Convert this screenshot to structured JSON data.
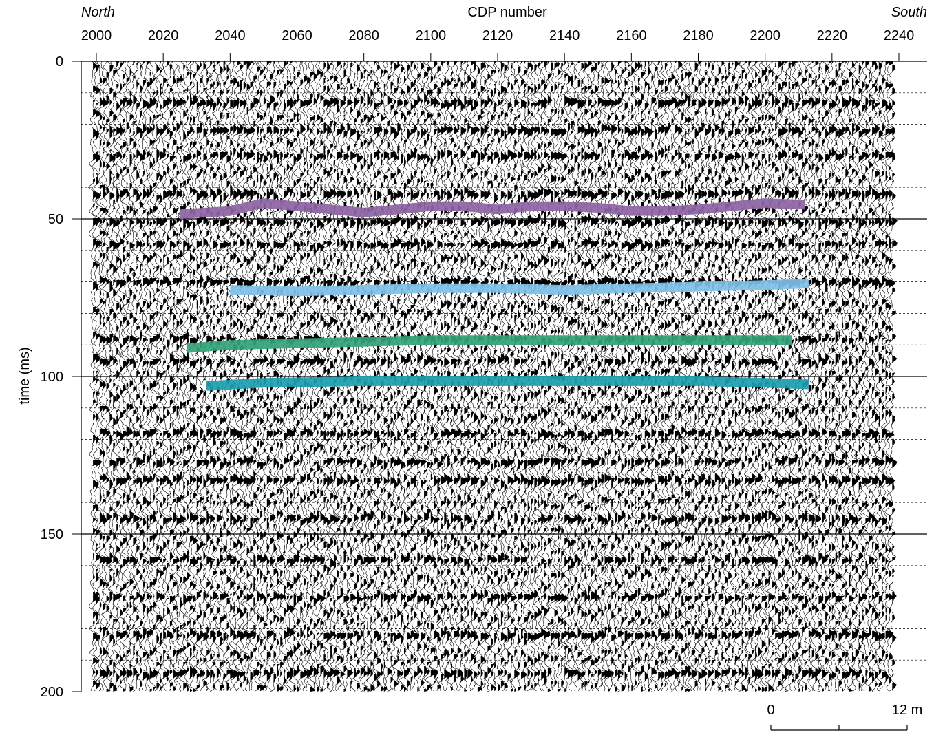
{
  "chart_data": {
    "type": "seismic-section",
    "xlabel": "CDP number",
    "ylabel": "time (ms)",
    "x_direction_labels": {
      "left": "North",
      "right": "South"
    },
    "x_ticks": [
      2000,
      2020,
      2040,
      2060,
      2080,
      2100,
      2120,
      2140,
      2160,
      2180,
      2200,
      2220,
      2240
    ],
    "y_ticks": [
      0,
      50,
      100,
      150,
      200
    ],
    "xlim": [
      1996,
      2247
    ],
    "ylim": [
      0,
      200
    ],
    "grid": "horizontal dashed every 10 ms, solid every 50 ms",
    "y_inverted": true,
    "scale_bar": {
      "start_label": "0",
      "end_label": "12 m",
      "length_m": 12
    },
    "horizons": [
      {
        "color": "#8e63a4",
        "points": [
          [
            2025,
            48.5
          ],
          [
            2040,
            47.5
          ],
          [
            2050,
            45
          ],
          [
            2060,
            46
          ],
          [
            2070,
            47
          ],
          [
            2080,
            48
          ],
          [
            2090,
            47
          ],
          [
            2100,
            46
          ],
          [
            2110,
            46
          ],
          [
            2120,
            47
          ],
          [
            2130,
            46
          ],
          [
            2140,
            46
          ],
          [
            2150,
            46.5
          ],
          [
            2160,
            47.5
          ],
          [
            2170,
            47.5
          ],
          [
            2180,
            47
          ],
          [
            2190,
            46
          ],
          [
            2200,
            45
          ],
          [
            2212,
            45.5
          ]
        ]
      },
      {
        "color": "#7ec0e9",
        "points": [
          [
            2040,
            72.5
          ],
          [
            2060,
            73
          ],
          [
            2080,
            72.5
          ],
          [
            2100,
            72
          ],
          [
            2120,
            72
          ],
          [
            2140,
            72.5
          ],
          [
            2160,
            72
          ],
          [
            2180,
            71.5
          ],
          [
            2200,
            71
          ],
          [
            2213,
            70.5
          ]
        ]
      },
      {
        "color": "#33a478",
        "points": [
          [
            2027,
            91
          ],
          [
            2040,
            90
          ],
          [
            2060,
            89.5
          ],
          [
            2080,
            89
          ],
          [
            2100,
            88.5
          ],
          [
            2120,
            88.5
          ],
          [
            2140,
            88.5
          ],
          [
            2160,
            88.5
          ],
          [
            2180,
            88.5
          ],
          [
            2200,
            88.5
          ],
          [
            2208,
            88.5
          ]
        ]
      },
      {
        "color": "#1b9eaf",
        "points": [
          [
            2033,
            103
          ],
          [
            2050,
            102
          ],
          [
            2080,
            101.5
          ],
          [
            2100,
            101.5
          ],
          [
            2120,
            101.5
          ],
          [
            2140,
            101.5
          ],
          [
            2160,
            101.5
          ],
          [
            2180,
            101.5
          ],
          [
            2200,
            102
          ],
          [
            2213,
            102.5
          ]
        ]
      }
    ],
    "reflectors": [
      13,
      22,
      30,
      42,
      51,
      58,
      70,
      88,
      95,
      118,
      127,
      133,
      145,
      158,
      170,
      182,
      194
    ]
  }
}
